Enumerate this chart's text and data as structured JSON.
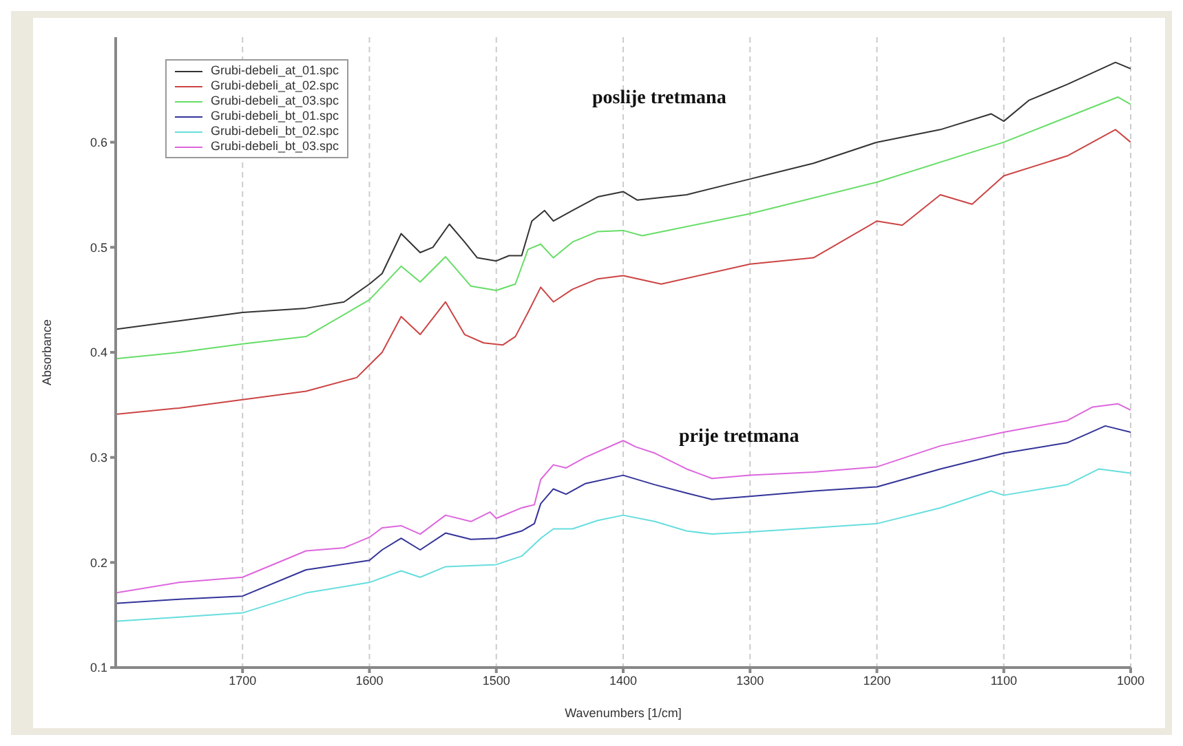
{
  "chart_data": {
    "type": "line",
    "xlabel": "Wavenumbers [1/cm]",
    "ylabel": "Absorbance",
    "xlim": [
      1800,
      1000
    ],
    "xticks": [
      1700,
      1600,
      1500,
      1400,
      1300,
      1200,
      1100,
      1000
    ],
    "ylim": [
      0.1,
      0.7
    ],
    "yticks": [
      0.1,
      0.2,
      0.3,
      0.4,
      0.5,
      0.6
    ],
    "grid": true,
    "legend": "top left",
    "line_style": "solid",
    "marker": "none",
    "annotations": [
      "poslije tretmana",
      "prije tretmana"
    ],
    "series": [
      {
        "name": "Grubi-debeli_at_01.spc",
        "color": "#333333",
        "x": [
          1800,
          1750,
          1700,
          1650,
          1620,
          1600,
          1590,
          1575,
          1560,
          1550,
          1537,
          1525,
          1515,
          1500,
          1490,
          1480,
          1472,
          1462,
          1455,
          1440,
          1420,
          1400,
          1389,
          1350,
          1300,
          1250,
          1200,
          1150,
          1110,
          1100,
          1080,
          1050,
          1012,
          1000
        ],
        "values": [
          0.422,
          0.43,
          0.438,
          0.442,
          0.448,
          0.465,
          0.475,
          0.513,
          0.495,
          0.5,
          0.522,
          0.505,
          0.49,
          0.487,
          0.492,
          0.492,
          0.525,
          0.535,
          0.525,
          0.535,
          0.548,
          0.553,
          0.545,
          0.55,
          0.565,
          0.58,
          0.6,
          0.612,
          0.627,
          0.62,
          0.64,
          0.655,
          0.676,
          0.67
        ]
      },
      {
        "name": "Grubi-debeli_at_02.spc",
        "color": "#cc4444",
        "x": [
          1800,
          1750,
          1700,
          1650,
          1610,
          1600,
          1590,
          1575,
          1560,
          1540,
          1525,
          1510,
          1495,
          1485,
          1475,
          1465,
          1455,
          1440,
          1420,
          1400,
          1370,
          1300,
          1250,
          1200,
          1180,
          1150,
          1125,
          1100,
          1050,
          1012,
          1000
        ],
        "values": [
          0.341,
          0.347,
          0.355,
          0.363,
          0.376,
          0.388,
          0.4,
          0.434,
          0.417,
          0.448,
          0.417,
          0.409,
          0.407,
          0.415,
          0.438,
          0.462,
          0.448,
          0.46,
          0.47,
          0.473,
          0.465,
          0.484,
          0.49,
          0.525,
          0.521,
          0.55,
          0.541,
          0.568,
          0.587,
          0.612,
          0.6
        ]
      },
      {
        "name": "Grubi-debeli_at_03.spc",
        "color": "#66dd66",
        "x": [
          1800,
          1750,
          1700,
          1650,
          1600,
          1575,
          1560,
          1540,
          1520,
          1500,
          1485,
          1475,
          1465,
          1455,
          1440,
          1420,
          1400,
          1385,
          1300,
          1200,
          1100,
          1010,
          1000
        ],
        "values": [
          0.394,
          0.4,
          0.408,
          0.415,
          0.45,
          0.482,
          0.467,
          0.491,
          0.463,
          0.459,
          0.465,
          0.498,
          0.503,
          0.49,
          0.505,
          0.515,
          0.516,
          0.511,
          0.532,
          0.562,
          0.6,
          0.643,
          0.636
        ]
      },
      {
        "name": "Grubi-debeli_bt_01.spc",
        "color": "#333399",
        "x": [
          1800,
          1750,
          1700,
          1650,
          1600,
          1590,
          1575,
          1560,
          1540,
          1520,
          1500,
          1480,
          1470,
          1465,
          1455,
          1445,
          1430,
          1400,
          1375,
          1350,
          1330,
          1300,
          1250,
          1200,
          1150,
          1100,
          1050,
          1020,
          1000
        ],
        "values": [
          0.161,
          0.165,
          0.168,
          0.193,
          0.202,
          0.212,
          0.223,
          0.212,
          0.228,
          0.222,
          0.223,
          0.23,
          0.237,
          0.256,
          0.27,
          0.265,
          0.275,
          0.283,
          0.274,
          0.266,
          0.26,
          0.263,
          0.268,
          0.272,
          0.289,
          0.304,
          0.314,
          0.33,
          0.324
        ]
      },
      {
        "name": "Grubi-debeli_bt_02.spc",
        "color": "#66dddd",
        "x": [
          1800,
          1750,
          1700,
          1650,
          1600,
          1575,
          1560,
          1540,
          1500,
          1480,
          1465,
          1455,
          1440,
          1420,
          1400,
          1375,
          1350,
          1330,
          1300,
          1250,
          1200,
          1150,
          1110,
          1100,
          1050,
          1025,
          1000
        ],
        "values": [
          0.144,
          0.148,
          0.152,
          0.171,
          0.181,
          0.192,
          0.186,
          0.196,
          0.198,
          0.206,
          0.223,
          0.232,
          0.232,
          0.24,
          0.245,
          0.239,
          0.23,
          0.227,
          0.229,
          0.233,
          0.237,
          0.252,
          0.268,
          0.264,
          0.274,
          0.289,
          0.285
        ]
      },
      {
        "name": "Grubi-debeli_bt_03.spc",
        "color": "#dd66dd",
        "x": [
          1800,
          1750,
          1700,
          1650,
          1620,
          1600,
          1590,
          1575,
          1560,
          1540,
          1520,
          1505,
          1500,
          1480,
          1470,
          1465,
          1455,
          1445,
          1430,
          1400,
          1390,
          1375,
          1350,
          1330,
          1300,
          1250,
          1200,
          1175,
          1150,
          1100,
          1050,
          1030,
          1010,
          1000
        ],
        "values": [
          0.171,
          0.181,
          0.186,
          0.211,
          0.214,
          0.224,
          0.233,
          0.235,
          0.227,
          0.245,
          0.239,
          0.248,
          0.242,
          0.252,
          0.255,
          0.279,
          0.293,
          0.29,
          0.3,
          0.316,
          0.31,
          0.304,
          0.289,
          0.28,
          0.283,
          0.286,
          0.291,
          0.301,
          0.311,
          0.324,
          0.335,
          0.348,
          0.351,
          0.345
        ]
      }
    ]
  }
}
